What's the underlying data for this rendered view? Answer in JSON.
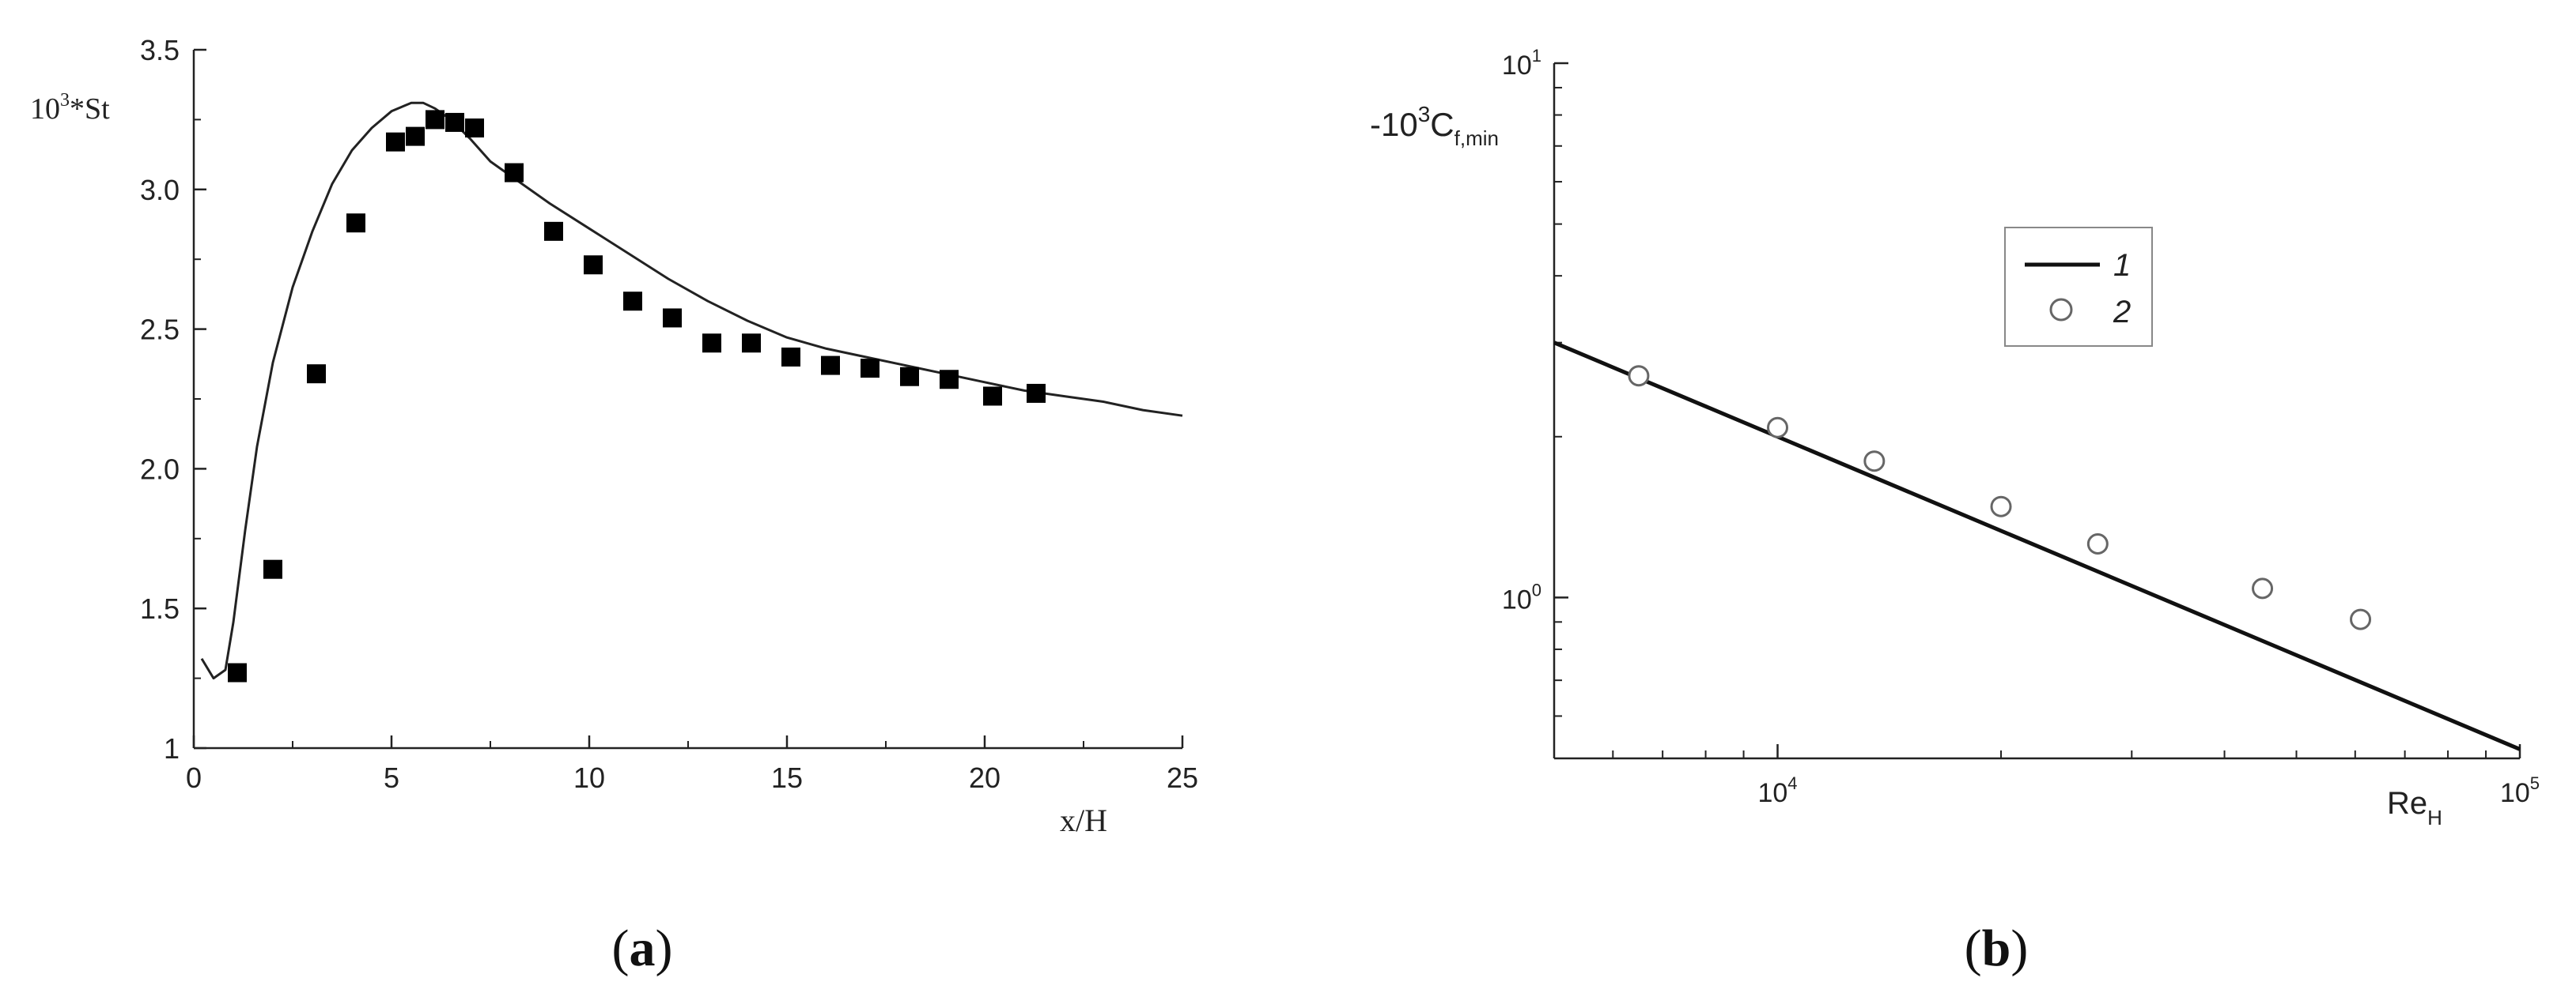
{
  "panels": {
    "a": {
      "caption_label": "a"
    },
    "b": {
      "caption_label": "b"
    }
  },
  "chart_data": [
    {
      "type": "line",
      "ylabel_base": "10",
      "ylabel_exp": "3",
      "ylabel_rest": "*St",
      "xlabel": "x/H",
      "xlim": [
        0,
        25
      ],
      "ylim": [
        1,
        3.5
      ],
      "xticks": [
        "0",
        "5",
        "10",
        "15",
        "20",
        "25"
      ],
      "yticks": [
        "1",
        "1.5",
        "2.0",
        "2.5",
        "3.0",
        "3.5"
      ],
      "grid": false,
      "series": [
        {
          "kind": "line",
          "x": [
            0.2,
            0.5,
            0.8,
            1.0,
            1.3,
            1.6,
            2.0,
            2.5,
            3.0,
            3.5,
            4.0,
            4.5,
            5.0,
            5.5,
            5.8,
            6.1,
            6.5,
            7.0,
            7.5,
            8.0,
            9.0,
            10.0,
            11.0,
            12.0,
            13.0,
            14.0,
            15.0,
            16.0,
            17.0,
            18.0,
            19.0,
            20.0,
            21.0,
            22.0,
            23.0,
            24.0,
            25.0
          ],
          "y": [
            1.32,
            1.25,
            1.28,
            1.45,
            1.78,
            2.08,
            2.38,
            2.65,
            2.85,
            3.02,
            3.14,
            3.22,
            3.28,
            3.31,
            3.31,
            3.29,
            3.25,
            3.18,
            3.1,
            3.05,
            2.95,
            2.86,
            2.77,
            2.68,
            2.6,
            2.53,
            2.47,
            2.43,
            2.4,
            2.37,
            2.34,
            2.31,
            2.28,
            2.26,
            2.24,
            2.21,
            2.19
          ]
        },
        {
          "kind": "marker-square",
          "x": [
            1.1,
            2.0,
            3.1,
            4.1,
            5.1,
            5.6,
            6.1,
            6.6,
            7.1,
            8.1,
            9.1,
            10.1,
            11.1,
            12.1,
            13.1,
            14.1,
            15.1,
            16.1,
            17.1,
            18.1,
            19.1,
            20.2,
            21.3
          ],
          "y": [
            1.27,
            1.64,
            2.34,
            2.88,
            3.17,
            3.19,
            3.25,
            3.24,
            3.22,
            3.06,
            2.85,
            2.73,
            2.6,
            2.54,
            2.45,
            2.45,
            2.4,
            2.37,
            2.36,
            2.33,
            2.32,
            2.26,
            2.27
          ]
        }
      ]
    },
    {
      "type": "line",
      "scale": "log-log",
      "ylabel_prefix": "-10",
      "ylabel_exp": "3",
      "ylabel_main": "C",
      "ylabel_sub": "f,min",
      "xlabel_main": "Re",
      "xlabel_sub": "H",
      "xlim": [
        5000,
        100000
      ],
      "ylim": [
        0.5,
        10
      ],
      "xtick_labels": [
        {
          "base": "10",
          "exp": "4",
          "value": 10000
        },
        {
          "base": "10",
          "exp": "5",
          "value": 100000
        }
      ],
      "ytick_labels": [
        {
          "base": "10",
          "exp": "0",
          "value": 1
        },
        {
          "base": "10",
          "exp": "1",
          "value": 10
        }
      ],
      "xminor": [
        6000,
        7000,
        8000,
        9000,
        20000,
        30000,
        40000,
        50000,
        60000,
        70000,
        80000,
        90000
      ],
      "yminor": [
        0.6,
        0.7,
        0.8,
        0.9,
        2,
        3,
        4,
        5,
        6,
        7,
        8,
        9
      ],
      "grid": false,
      "legend_position": "upper-right",
      "series": [
        {
          "name": "1",
          "kind": "line",
          "x": [
            5000,
            100000
          ],
          "y": [
            3.0,
            0.52
          ]
        },
        {
          "name": "2",
          "kind": "marker-circle",
          "x": [
            6500,
            10000,
            13500,
            20000,
            27000,
            45000,
            61000
          ],
          "y": [
            2.6,
            2.08,
            1.8,
            1.48,
            1.26,
            1.04,
            0.91
          ]
        }
      ]
    }
  ]
}
